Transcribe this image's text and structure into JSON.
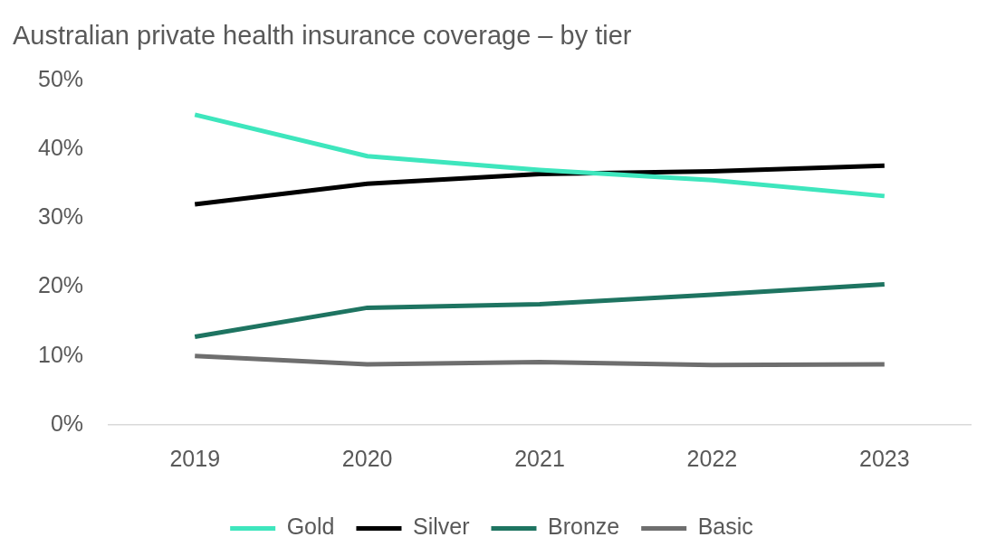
{
  "chart_data": {
    "type": "line",
    "title": "Australian private health insurance coverage – by tier",
    "categories": [
      "2019",
      "2020",
      "2021",
      "2022",
      "2023"
    ],
    "series": [
      {
        "name": "Gold",
        "color": "#3ee6bd",
        "values": [
          45,
          39,
          37,
          35.5,
          33.2
        ]
      },
      {
        "name": "Silver",
        "color": "#000000",
        "values": [
          32,
          35,
          36.4,
          36.8,
          37.6
        ]
      },
      {
        "name": "Bronze",
        "color": "#1e7461",
        "values": [
          12.8,
          17,
          17.5,
          18.9,
          20.4
        ]
      },
      {
        "name": "Basic",
        "color": "#6e6e6e",
        "values": [
          10,
          8.8,
          9.1,
          8.7,
          8.8
        ]
      }
    ],
    "ylim": [
      0,
      50
    ],
    "yticks": [
      {
        "value": 0,
        "label": "0%"
      },
      {
        "value": 10,
        "label": "10%"
      },
      {
        "value": 20,
        "label": "20%"
      },
      {
        "value": 30,
        "label": "30%"
      },
      {
        "value": 40,
        "label": "40%"
      },
      {
        "value": 50,
        "label": "50%"
      }
    ],
    "grid": false,
    "legend": "bottom"
  }
}
